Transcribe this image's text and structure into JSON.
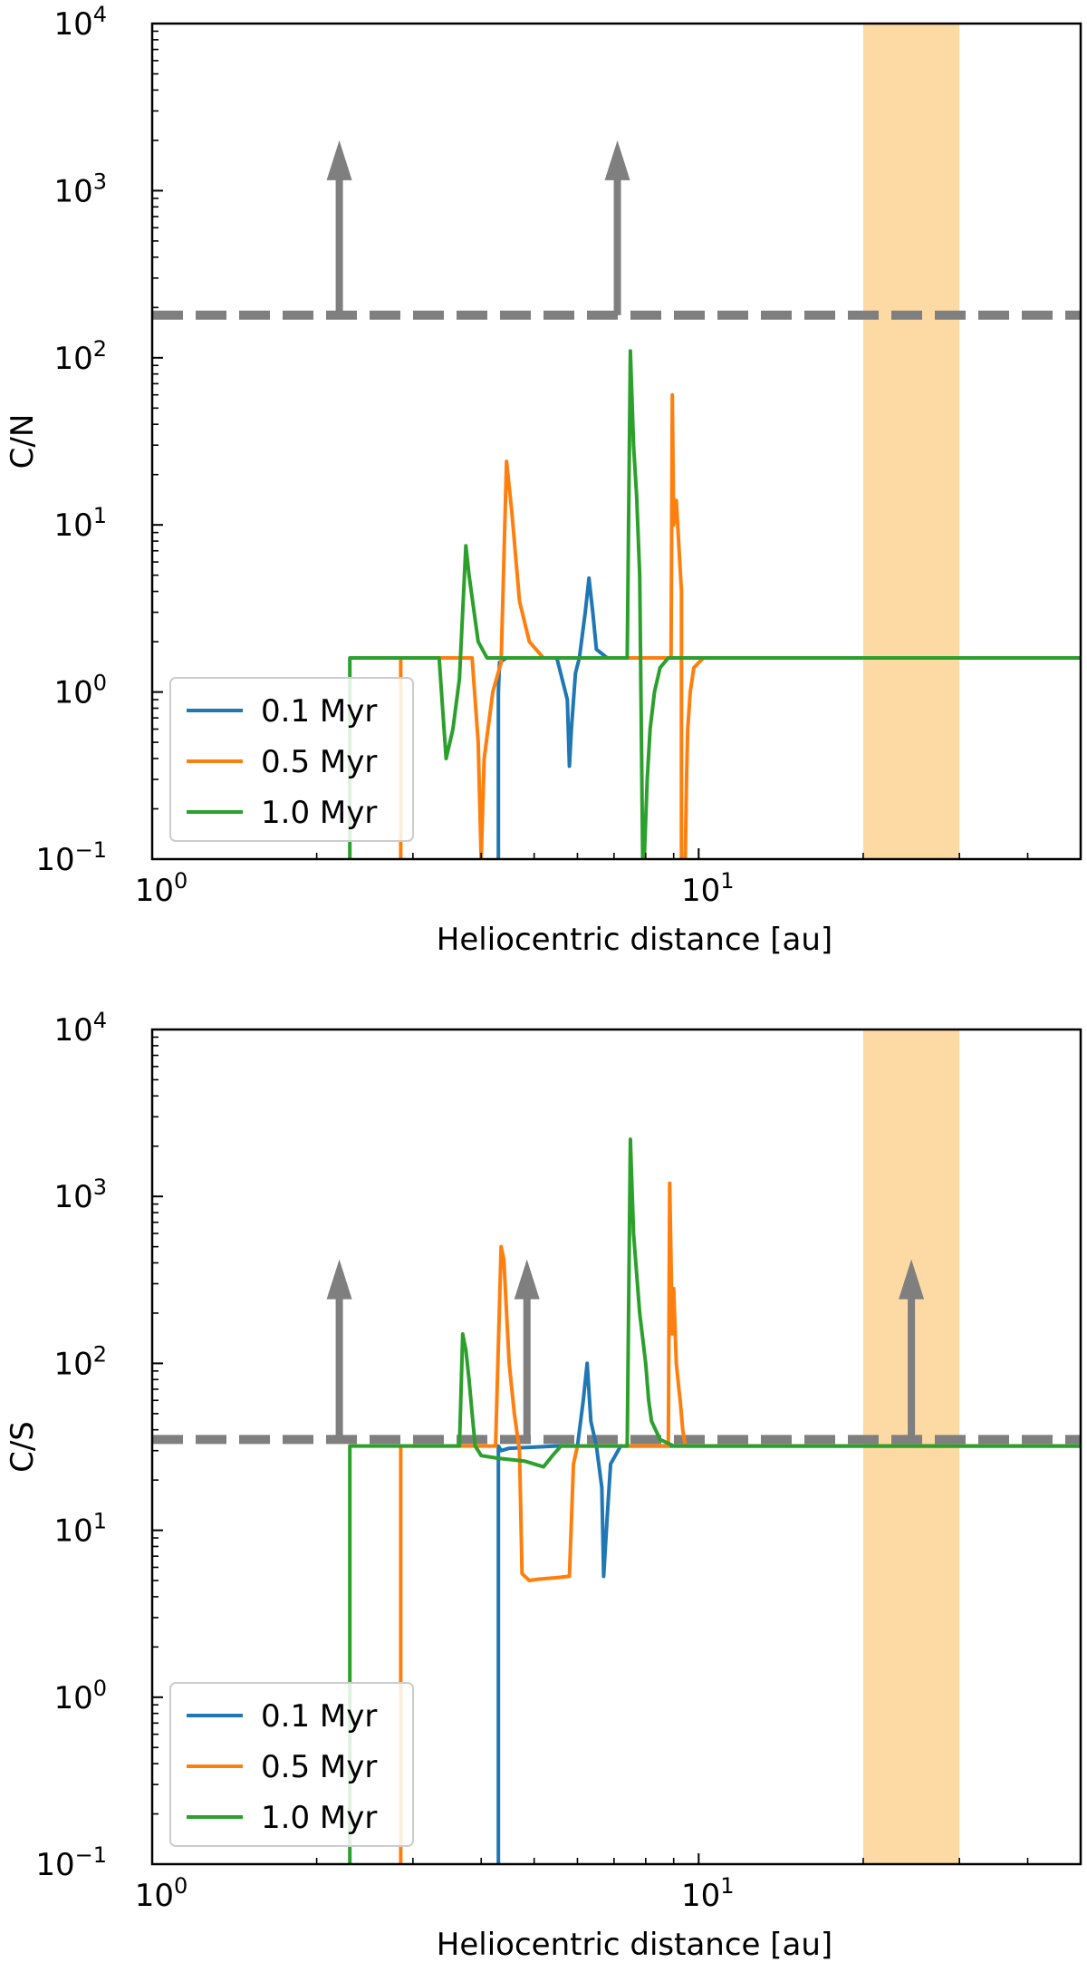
{
  "colors": {
    "series_0_1": "#1f77b4",
    "series_0_5": "#ff7f0e",
    "series_1_0": "#2ca02c",
    "threshold": "#7f7f7f",
    "band": "#fdd9a4"
  },
  "chart_data": [
    {
      "type": "line",
      "xlabel": "Heliocentric distance [au]",
      "ylabel": "C/N",
      "xscale": "log",
      "yscale": "log",
      "xlim": [
        1,
        50
      ],
      "ylim": [
        0.1,
        10000
      ],
      "xticks": [
        {
          "value": 1,
          "base": "10",
          "exp": "0"
        },
        {
          "value": 10,
          "base": "10",
          "exp": "1"
        }
      ],
      "yticks": [
        {
          "value": 0.1,
          "base": "10",
          "exp": "−1"
        },
        {
          "value": 1,
          "base": "10",
          "exp": "0"
        },
        {
          "value": 10,
          "base": "10",
          "exp": "1"
        },
        {
          "value": 100,
          "base": "10",
          "exp": "2"
        },
        {
          "value": 1000,
          "base": "10",
          "exp": "3"
        },
        {
          "value": 10000,
          "base": "10",
          "exp": "4"
        }
      ],
      "grid": false,
      "legend_position": "lower-left",
      "shaded_band": {
        "x": [
          20,
          30
        ]
      },
      "threshold": {
        "y": 180,
        "style": "dashed"
      },
      "lower_limit_arrows": [
        {
          "x": 2.2,
          "y_from": 180,
          "y_to": 2000
        },
        {
          "x": 7.1,
          "y_from": 180,
          "y_to": 2000
        }
      ],
      "series": [
        {
          "name": "0.1 Myr",
          "color": "#1f77b4",
          "x": [
            4.3,
            4.3,
            4.32,
            4.45,
            4.6,
            5.5,
            5.75,
            5.8,
            5.85,
            5.95,
            6.05,
            6.2,
            6.3,
            6.4,
            6.5,
            6.8,
            7.5,
            8.0,
            8.6,
            9.0,
            9.5,
            10,
            10.3,
            50
          ],
          "y": [
            0.1,
            1.0,
            1.5,
            1.6,
            1.6,
            1.6,
            0.9,
            0.36,
            0.6,
            1.3,
            1.6,
            3.0,
            4.8,
            3.0,
            1.8,
            1.6,
            1.6,
            1.6,
            1.6,
            1.6,
            1.6,
            1.6,
            1.6,
            1.6
          ]
        },
        {
          "name": "0.5 Myr",
          "color": "#ff7f0e",
          "x": [
            2.85,
            2.85,
            3.6,
            3.85,
            3.95,
            4.0,
            4.05,
            4.2,
            4.35,
            4.45,
            4.55,
            4.7,
            4.9,
            5.2,
            6.0,
            8.9,
            8.95,
            9.0,
            9.1,
            9.3,
            9.3,
            9.45,
            9.5,
            9.55,
            9.65,
            9.8,
            10.2,
            10.8,
            50
          ],
          "y": [
            0.1,
            1.6,
            1.6,
            1.6,
            0.5,
            0.1,
            0.4,
            1.0,
            1.5,
            24,
            12,
            3.5,
            2.0,
            1.6,
            1.6,
            1.6,
            60,
            10,
            14,
            4.0,
            0.1,
            0.1,
            0.3,
            0.6,
            1.0,
            1.4,
            1.6,
            1.6,
            1.6
          ]
        },
        {
          "name": "1.0 Myr",
          "color": "#2ca02c",
          "x": [
            2.3,
            2.3,
            3.35,
            3.4,
            3.45,
            3.55,
            3.65,
            3.75,
            3.8,
            3.95,
            4.1,
            4.3,
            7.4,
            7.5,
            7.6,
            7.7,
            7.8,
            7.9,
            7.95,
            8.05,
            8.15,
            8.3,
            8.5,
            8.8,
            9.3,
            10,
            50
          ],
          "y": [
            0.1,
            1.6,
            1.6,
            0.8,
            0.4,
            0.6,
            1.2,
            7.5,
            5.0,
            2.0,
            1.6,
            1.6,
            1.6,
            110,
            30,
            15,
            5.0,
            0.1,
            0.1,
            0.3,
            0.6,
            1.0,
            1.4,
            1.6,
            1.6,
            1.6,
            1.6
          ]
        }
      ],
      "legend": {
        "entries": [
          "0.1 Myr",
          "0.5 Myr",
          "1.0 Myr"
        ]
      }
    },
    {
      "type": "line",
      "xlabel": "Heliocentric distance [au]",
      "ylabel": "C/S",
      "xscale": "log",
      "yscale": "log",
      "xlim": [
        1,
        50
      ],
      "ylim": [
        0.1,
        10000
      ],
      "xticks": [
        {
          "value": 1,
          "base": "10",
          "exp": "0"
        },
        {
          "value": 10,
          "base": "10",
          "exp": "1"
        }
      ],
      "yticks": [
        {
          "value": 0.1,
          "base": "10",
          "exp": "−1"
        },
        {
          "value": 1,
          "base": "10",
          "exp": "0"
        },
        {
          "value": 10,
          "base": "10",
          "exp": "1"
        },
        {
          "value": 100,
          "base": "10",
          "exp": "2"
        },
        {
          "value": 1000,
          "base": "10",
          "exp": "3"
        },
        {
          "value": 10000,
          "base": "10",
          "exp": "4"
        }
      ],
      "grid": false,
      "legend_position": "lower-left",
      "shaded_band": {
        "x": [
          20,
          30
        ]
      },
      "threshold": {
        "y": 35,
        "style": "dashed"
      },
      "lower_limit_arrows": [
        {
          "x": 2.2,
          "y_from": 35,
          "y_to": 420
        },
        {
          "x": 4.85,
          "y_from": 35,
          "y_to": 420
        },
        {
          "x": 24.5,
          "y_from": 35,
          "y_to": 420
        }
      ],
      "series": [
        {
          "name": "0.1 Myr",
          "color": "#1f77b4",
          "x": [
            4.3,
            4.3,
            4.35,
            4.5,
            5.5,
            6.0,
            6.15,
            6.25,
            6.35,
            6.5,
            6.65,
            6.7,
            6.8,
            6.9,
            7.2,
            8.0,
            50
          ],
          "y": [
            0.1,
            32,
            30,
            31,
            32,
            32,
            60,
            100,
            45,
            32,
            18,
            5.3,
            12,
            25,
            32,
            32,
            32
          ]
        },
        {
          "name": "0.5 Myr",
          "color": "#ff7f0e",
          "x": [
            2.85,
            2.85,
            4.25,
            4.35,
            4.4,
            4.5,
            4.6,
            4.7,
            4.75,
            4.9,
            5.1,
            5.5,
            5.8,
            5.9,
            6.0,
            8.8,
            8.85,
            8.95,
            9.0,
            9.1,
            9.2,
            9.25,
            9.35,
            9.45,
            50
          ],
          "y": [
            0.1,
            32,
            32,
            500,
            420,
            100,
            50,
            30,
            5.5,
            5.0,
            5.1,
            5.2,
            5.3,
            25,
            32,
            32,
            1200,
            150,
            280,
            100,
            70,
            60,
            40,
            32,
            32
          ]
        },
        {
          "name": "1.0 Myr",
          "color": "#2ca02c",
          "x": [
            2.3,
            2.3,
            3.65,
            3.7,
            3.75,
            3.8,
            3.85,
            3.9,
            4.0,
            4.3,
            4.8,
            5.2,
            5.4,
            5.6,
            5.7,
            7.4,
            7.5,
            7.6,
            7.8,
            8.0,
            8.1,
            8.2,
            8.5,
            9.0,
            50
          ],
          "y": [
            0.1,
            32,
            32,
            150,
            120,
            80,
            50,
            32,
            28,
            27,
            26,
            24,
            28,
            32,
            32,
            32,
            2200,
            600,
            200,
            100,
            60,
            45,
            35,
            32,
            32
          ]
        }
      ],
      "legend": {
        "entries": [
          "0.1 Myr",
          "0.5 Myr",
          "1.0 Myr"
        ]
      }
    }
  ]
}
